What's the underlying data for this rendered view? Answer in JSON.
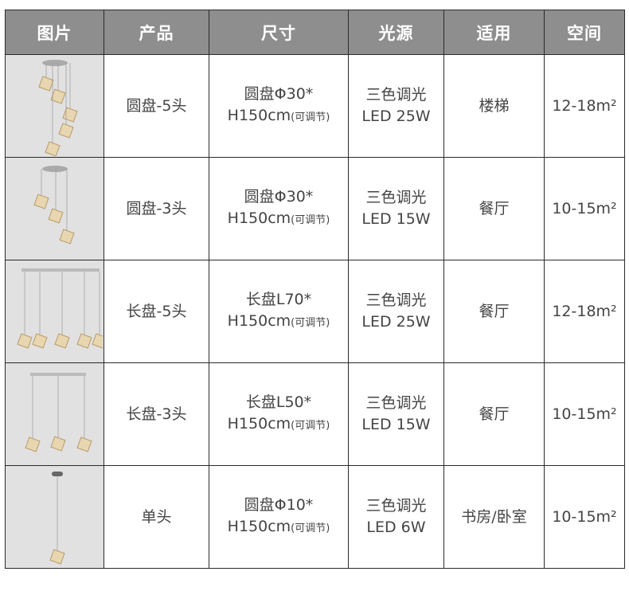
{
  "header": [
    "图片",
    "产品",
    "尺寸",
    "光源",
    "适用",
    "空间"
  ],
  "rows": [
    {
      "lamp": "round-5",
      "product": "圆盘-5头",
      "size_line1": "圆盘Φ30*",
      "size_line2": "H150cm",
      "size_note": "(可调节)",
      "light_line1": "三色调光",
      "light_line2": "LED 25W",
      "use": "楼梯",
      "space": "12-18m²"
    },
    {
      "lamp": "round-3",
      "product": "圆盘-3头",
      "size_line1": "圆盘Φ30*",
      "size_line2": "H150cm",
      "size_note": "(可调节)",
      "light_line1": "三色调光",
      "light_line2": "LED 15W",
      "use": "餐厅",
      "space": "10-15m²"
    },
    {
      "lamp": "long-5",
      "product": "长盘-5头",
      "size_line1": "长盘L70*",
      "size_line2": "H150cm",
      "size_note": "(可调节)",
      "light_line1": "三色调光",
      "light_line2": "LED 25W",
      "use": "餐厅",
      "space": "12-18m²"
    },
    {
      "lamp": "long-3",
      "product": "长盘-3头",
      "size_line1": "长盘L50*",
      "size_line2": "H150cm",
      "size_note": "(可调节)",
      "light_line1": "三色调光",
      "light_line2": "LED 15W",
      "use": "餐厅",
      "space": "10-15m²"
    },
    {
      "lamp": "single",
      "product": "单头",
      "size_line1": "圆盘Φ10*",
      "size_line2": "H150cm",
      "size_note": "(可调节)",
      "light_line1": "三色调光",
      "light_line2": "LED 6W",
      "use": "书房/卧室",
      "space": "10-15m²"
    }
  ]
}
